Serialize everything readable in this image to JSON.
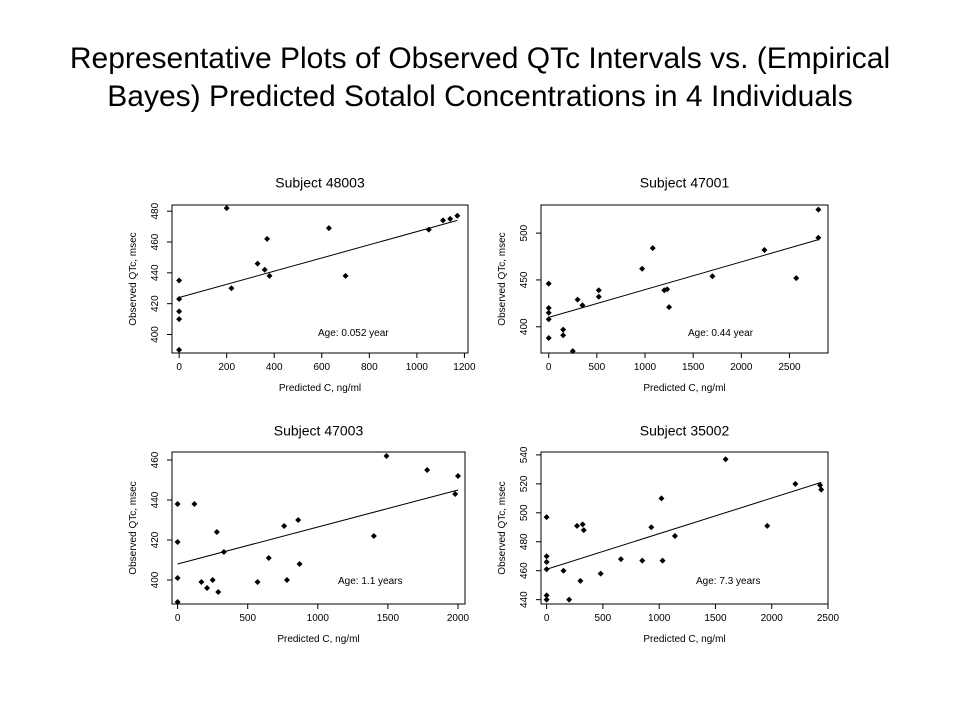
{
  "page": {
    "title_line1": "Representative Plots of Observed QTc Intervals vs. (Empirical",
    "title_line2": "Bayes) Predicted Sotalol Concentrations in 4 Individuals"
  },
  "chart_data": [
    {
      "type": "scatter",
      "title": "Subject 48003",
      "xlabel": "Predicted C, ng/ml",
      "ylabel": "Observed QTc, msec",
      "annotation": "Age: 0.052 year",
      "xlim": [
        -30,
        1215
      ],
      "ylim": [
        388,
        484
      ],
      "xticks": [
        0,
        200,
        400,
        600,
        800,
        1000,
        1200
      ],
      "yticks": [
        400,
        420,
        440,
        460,
        480
      ],
      "points": [
        [
          0,
          390
        ],
        [
          0,
          410
        ],
        [
          0,
          415
        ],
        [
          0,
          423
        ],
        [
          0,
          435
        ],
        [
          200,
          482
        ],
        [
          220,
          430
        ],
        [
          330,
          446
        ],
        [
          360,
          442
        ],
        [
          370,
          462
        ],
        [
          380,
          438
        ],
        [
          630,
          469
        ],
        [
          700,
          438
        ],
        [
          1050,
          468
        ],
        [
          1110,
          474
        ],
        [
          1140,
          475
        ],
        [
          1170,
          477
        ]
      ],
      "fit_line": [
        [
          0,
          424
        ],
        [
          1170,
          474
        ]
      ]
    },
    {
      "type": "scatter",
      "title": "Subject 47001",
      "xlabel": "Predicted C, ng/ml",
      "ylabel": "Observed QTc, msec",
      "annotation": "Age: 0.44 year",
      "xlim": [
        -80,
        2900
      ],
      "ylim": [
        372,
        530
      ],
      "xticks": [
        0,
        500,
        1000,
        1500,
        2000,
        2500
      ],
      "yticks": [
        400,
        450,
        500
      ],
      "points": [
        [
          0,
          446
        ],
        [
          0,
          420
        ],
        [
          0,
          415
        ],
        [
          0,
          408
        ],
        [
          0,
          388
        ],
        [
          150,
          397
        ],
        [
          150,
          391
        ],
        [
          250,
          374
        ],
        [
          300,
          429
        ],
        [
          350,
          423
        ],
        [
          520,
          439
        ],
        [
          520,
          432
        ],
        [
          970,
          462
        ],
        [
          1080,
          484
        ],
        [
          1200,
          439
        ],
        [
          1230,
          440
        ],
        [
          1250,
          421
        ],
        [
          1700,
          454
        ],
        [
          2240,
          482
        ],
        [
          2570,
          452
        ],
        [
          2800,
          525
        ],
        [
          2800,
          495
        ]
      ],
      "fit_line": [
        [
          0,
          410
        ],
        [
          2800,
          493
        ]
      ]
    },
    {
      "type": "scatter",
      "title": "Subject 47003",
      "xlabel": "Predicted C, ng/ml",
      "ylabel": "Observed QTc, msec",
      "annotation": "Age: 1.1 years",
      "xlim": [
        -40,
        2050
      ],
      "ylim": [
        388,
        464
      ],
      "xticks": [
        0,
        500,
        1000,
        1500,
        2000
      ],
      "yticks": [
        400,
        420,
        440,
        460
      ],
      "points": [
        [
          0,
          438
        ],
        [
          0,
          419
        ],
        [
          0,
          401
        ],
        [
          0,
          389
        ],
        [
          120,
          438
        ],
        [
          170,
          399
        ],
        [
          210,
          396
        ],
        [
          250,
          400
        ],
        [
          280,
          424
        ],
        [
          290,
          394
        ],
        [
          330,
          414
        ],
        [
          570,
          399
        ],
        [
          650,
          411
        ],
        [
          760,
          427
        ],
        [
          780,
          400
        ],
        [
          860,
          430
        ],
        [
          870,
          408
        ],
        [
          1400,
          422
        ],
        [
          1490,
          462
        ],
        [
          1780,
          455
        ],
        [
          1980,
          443
        ],
        [
          2000,
          452
        ]
      ],
      "fit_line": [
        [
          0,
          408
        ],
        [
          2000,
          445
        ]
      ]
    },
    {
      "type": "scatter",
      "title": "Subject 35002",
      "xlabel": "Predicted C, ng/ml",
      "ylabel": "Observed QTc, msec",
      "annotation": "Age: 7.3 years",
      "xlim": [
        -50,
        2500
      ],
      "ylim": [
        437,
        542
      ],
      "xticks": [
        0,
        500,
        1000,
        1500,
        2000,
        2500
      ],
      "yticks": [
        440,
        460,
        480,
        500,
        520,
        540
      ],
      "points": [
        [
          0,
          497
        ],
        [
          0,
          470
        ],
        [
          0,
          466
        ],
        [
          0,
          461
        ],
        [
          0,
          443
        ],
        [
          0,
          440
        ],
        [
          150,
          460
        ],
        [
          200,
          440
        ],
        [
          270,
          491
        ],
        [
          300,
          453
        ],
        [
          320,
          492
        ],
        [
          330,
          488
        ],
        [
          480,
          458
        ],
        [
          660,
          468
        ],
        [
          850,
          467
        ],
        [
          930,
          490
        ],
        [
          1020,
          510
        ],
        [
          1030,
          467
        ],
        [
          1140,
          484
        ],
        [
          1590,
          537
        ],
        [
          1960,
          491
        ],
        [
          2210,
          520
        ],
        [
          2430,
          519
        ],
        [
          2440,
          516
        ]
      ],
      "fit_line": [
        [
          0,
          461
        ],
        [
          2440,
          521
        ]
      ]
    }
  ]
}
